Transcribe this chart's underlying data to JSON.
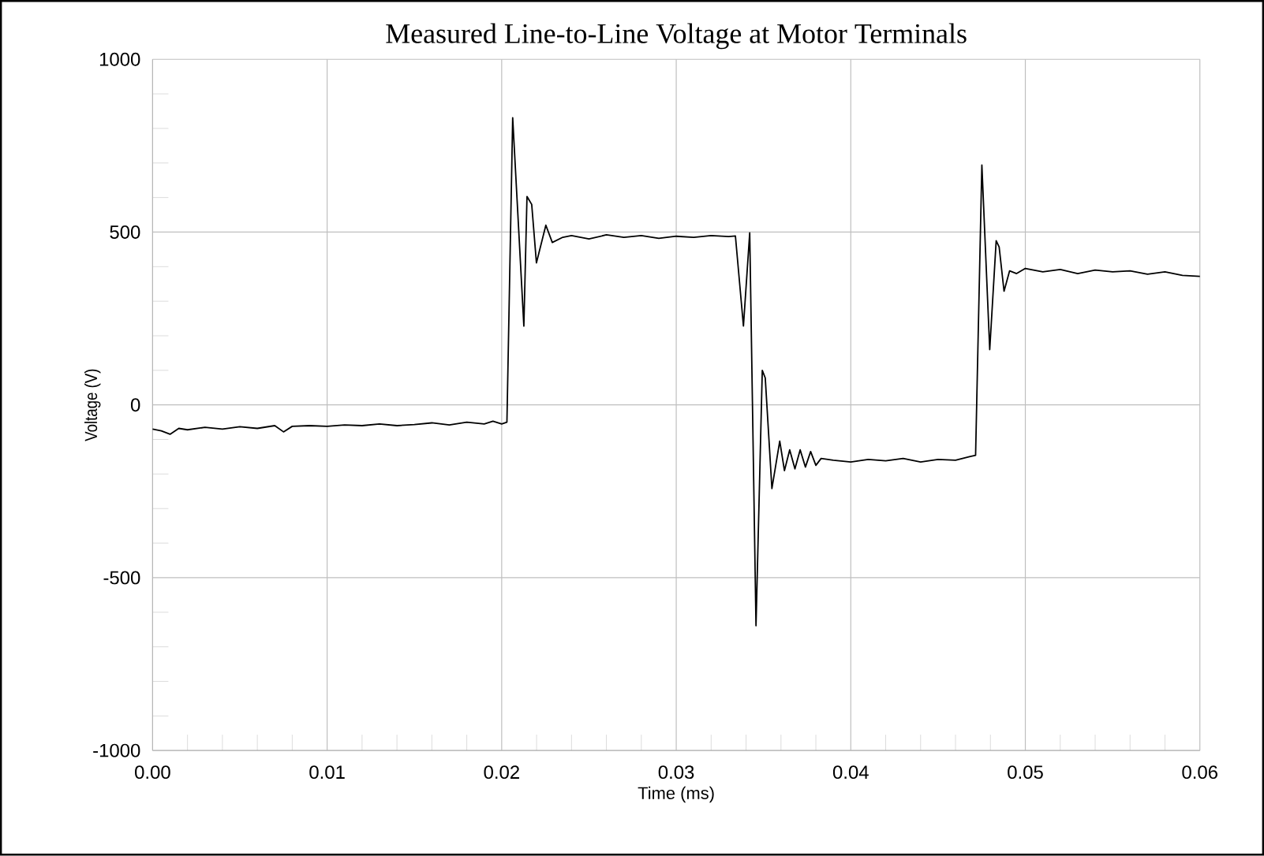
{
  "chart_data": {
    "type": "line",
    "title": "Measured Line-to-Line Voltage at Motor Terminals",
    "xlabel": "Time (ms)",
    "ylabel": "Voltage (V)",
    "xlim": [
      0,
      0.06
    ],
    "ylim": [
      -1000,
      1000
    ],
    "xticks": [
      {
        "value": 0,
        "label": "0.00"
      },
      {
        "value": 0.01,
        "label": "0.01"
      },
      {
        "value": 0.02,
        "label": "0.02"
      },
      {
        "value": 0.03,
        "label": "0.03"
      },
      {
        "value": 0.04,
        "label": "0.04"
      },
      {
        "value": 0.05,
        "label": "0.05"
      },
      {
        "value": 0.06,
        "label": "0.06"
      }
    ],
    "yticks": [
      -1000,
      -500,
      0,
      500,
      1000
    ],
    "grid": true,
    "marker": "none",
    "line_style": "solid",
    "series": [
      {
        "color": "#000000",
        "x": [
          0,
          0.0005,
          0.001,
          0.0015,
          0.002,
          0.003,
          0.004,
          0.005,
          0.006,
          0.007,
          0.0075,
          0.008,
          0.009,
          0.01,
          0.011,
          0.012,
          0.013,
          0.014,
          0.015,
          0.016,
          0.017,
          0.018,
          0.019,
          0.0195,
          0.02,
          0.0203,
          0.02063,
          0.02127,
          0.02145,
          0.02172,
          0.02199,
          0.02253,
          0.0229,
          0.0235,
          0.024,
          0.025,
          0.026,
          0.027,
          0.028,
          0.029,
          0.03,
          0.031,
          0.032,
          0.033,
          0.03339,
          0.03385,
          0.03421,
          0.03457,
          0.03493,
          0.0351,
          0.03548,
          0.03593,
          0.0362,
          0.0365,
          0.0368,
          0.0371,
          0.0374,
          0.0377,
          0.038,
          0.0383,
          0.039,
          0.04,
          0.041,
          0.042,
          0.043,
          0.044,
          0.045,
          0.046,
          0.0468,
          0.04715,
          0.04751,
          0.04796,
          0.04833,
          0.0485,
          0.04878,
          0.0491,
          0.0495,
          0.05,
          0.051,
          0.052,
          0.053,
          0.054,
          0.055,
          0.056,
          0.057,
          0.058,
          0.059,
          0.06
        ],
        "values": [
          -70,
          -75,
          -85,
          -68,
          -72,
          -65,
          -70,
          -63,
          -68,
          -60,
          -78,
          -62,
          -60,
          -62,
          -58,
          -60,
          -55,
          -60,
          -57,
          -52,
          -58,
          -50,
          -55,
          -47,
          -55,
          -50,
          831,
          228,
          603,
          580,
          411,
          520,
          470,
          485,
          490,
          480,
          492,
          485,
          490,
          482,
          488,
          485,
          490,
          487,
          489,
          228,
          498,
          -639,
          100,
          78,
          -242,
          -105,
          -190,
          -130,
          -185,
          -130,
          -180,
          -135,
          -175,
          -155,
          -160,
          -165,
          -158,
          -162,
          -155,
          -165,
          -158,
          -160,
          -150,
          -146,
          694,
          160,
          475,
          457,
          329,
          388,
          380,
          395,
          385,
          392,
          380,
          390,
          385,
          388,
          378,
          385,
          375,
          372
        ]
      }
    ]
  }
}
